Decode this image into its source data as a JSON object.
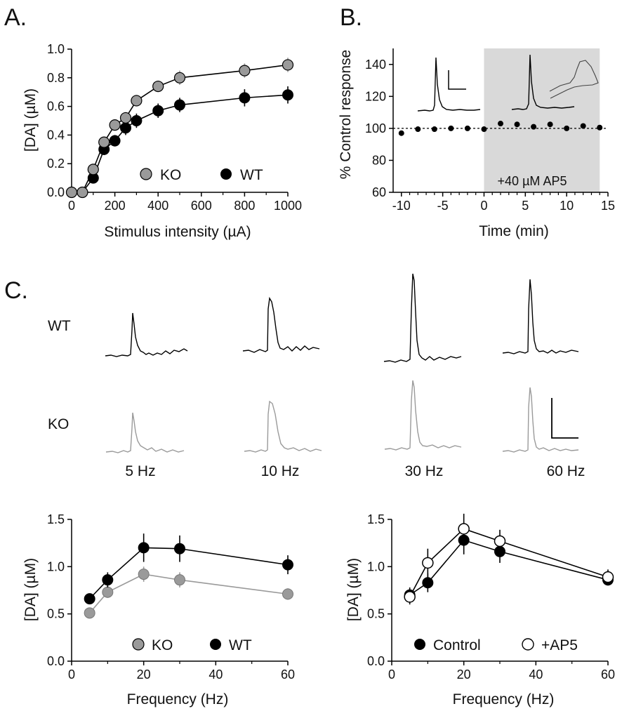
{
  "panels": {
    "A": "A.",
    "B": "B.",
    "C": "C."
  },
  "colors": {
    "ko": "#9a9a9a",
    "wt": "#000000",
    "shade": "#d9d9d9",
    "trace_ko": "#9a9a9a",
    "trace_wt": "#000000"
  },
  "chart_data": [
    {
      "id": "A",
      "type": "line",
      "xlabel": "Stimulus intensity (µA)",
      "ylabel": "[DA] (µM)",
      "xlim": [
        0,
        1000
      ],
      "ylim": [
        0,
        1.0
      ],
      "xticks": [
        "0",
        "200",
        "400",
        "600",
        "800",
        "1000"
      ],
      "yticks": [
        "0.0",
        "0.2",
        "0.4",
        "0.6",
        "0.8",
        "1.0"
      ],
      "legend": "bottom-right",
      "series": [
        {
          "name": "KO",
          "x": [
            0,
            50,
            100,
            150,
            200,
            250,
            300,
            400,
            500,
            800,
            1000
          ],
          "y": [
            0.0,
            0.0,
            0.16,
            0.35,
            0.47,
            0.52,
            0.64,
            0.74,
            0.8,
            0.85,
            0.89
          ],
          "err": [
            0,
            0,
            0.02,
            0.03,
            0.03,
            0.04,
            0.04,
            0.04,
            0.05,
            0.05,
            0.05
          ]
        },
        {
          "name": "WT",
          "x": [
            0,
            50,
            100,
            150,
            200,
            250,
            300,
            400,
            500,
            800,
            1000
          ],
          "y": [
            0.0,
            0.0,
            0.1,
            0.3,
            0.36,
            0.45,
            0.5,
            0.57,
            0.61,
            0.66,
            0.68
          ],
          "err": [
            0,
            0,
            0.02,
            0.04,
            0.04,
            0.05,
            0.05,
            0.05,
            0.05,
            0.06,
            0.06
          ]
        }
      ]
    },
    {
      "id": "B",
      "type": "scatter",
      "xlabel": "Time (min)",
      "ylabel": "% Control response",
      "xlim": [
        -11,
        15
      ],
      "ylim": [
        60,
        150
      ],
      "xticks": [
        "-10",
        "-5",
        "0",
        "5",
        "10",
        "15"
      ],
      "yticks": [
        "60",
        "80",
        "100",
        "120",
        "140"
      ],
      "shaded_region": [
        0,
        14
      ],
      "shaded_label": "+40 µM AP5",
      "reference_line": 100,
      "series": [
        {
          "name": "",
          "x": [
            -10,
            -8,
            -6,
            -4,
            -2,
            0,
            2,
            4,
            6,
            8,
            10,
            12,
            14
          ],
          "y": [
            97,
            99.5,
            99.5,
            100,
            100,
            99.5,
            103,
            102.5,
            101,
            102.5,
            100,
            101.5,
            100.5
          ]
        }
      ]
    },
    {
      "id": "C-left",
      "type": "line",
      "xlabel": "Frequency (Hz)",
      "ylabel": "[DA] (µM)",
      "xlim": [
        0,
        60
      ],
      "ylim": [
        0,
        1.5
      ],
      "xticks": [
        "0",
        "20",
        "40",
        "60"
      ],
      "yticks": [
        "0.0",
        "0.5",
        "1.0",
        "1.5"
      ],
      "legend": "bottom",
      "series": [
        {
          "name": "KO",
          "x": [
            5,
            10,
            20,
            30,
            60
          ],
          "y": [
            0.51,
            0.73,
            0.92,
            0.86,
            0.71
          ],
          "err": [
            0.03,
            0.06,
            0.08,
            0.08,
            0.06
          ]
        },
        {
          "name": "WT",
          "x": [
            5,
            10,
            20,
            30,
            60
          ],
          "y": [
            0.66,
            0.86,
            1.2,
            1.19,
            1.02
          ],
          "err": [
            0.05,
            0.08,
            0.15,
            0.14,
            0.1
          ]
        }
      ]
    },
    {
      "id": "C-right",
      "type": "line",
      "xlabel": "Frequency (Hz)",
      "ylabel": "[DA] (µM)",
      "xlim": [
        0,
        60
      ],
      "ylim": [
        0,
        1.5
      ],
      "xticks": [
        "0",
        "20",
        "40",
        "60"
      ],
      "yticks": [
        "0.0",
        "0.5",
        "1.0",
        "1.5"
      ],
      "legend": "bottom",
      "series": [
        {
          "name": "Control",
          "x": [
            5,
            10,
            20,
            30,
            60
          ],
          "y": [
            0.7,
            0.83,
            1.28,
            1.16,
            0.86
          ],
          "err": [
            0.08,
            0.1,
            0.15,
            0.12,
            0.06
          ]
        },
        {
          "name": "+AP5",
          "x": [
            5,
            10,
            20,
            30,
            60
          ],
          "y": [
            0.68,
            1.04,
            1.4,
            1.27,
            0.89
          ],
          "err": [
            0.08,
            0.15,
            0.16,
            0.12,
            0.08
          ]
        }
      ]
    }
  ],
  "traces": {
    "rows": [
      "WT",
      "KO"
    ],
    "frequencies": [
      "5 Hz",
      "10 Hz",
      "30 Hz",
      "60 Hz"
    ]
  }
}
